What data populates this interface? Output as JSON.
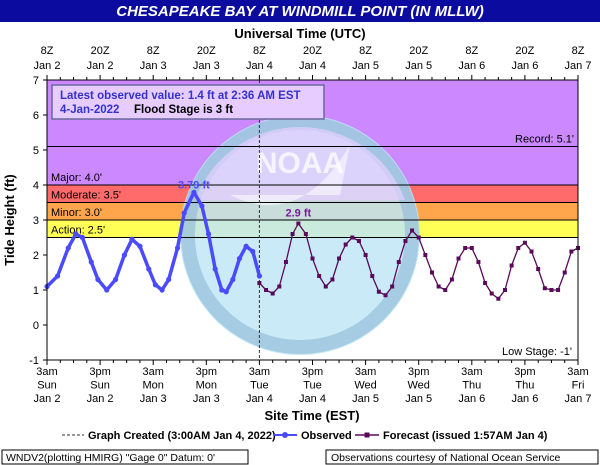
{
  "title": "CHESAPEAKE BAY AT WINDMILL POINT (IN MLLW)",
  "top_axis_label": "Universal Time (UTC)",
  "bottom_axis_label": "Site Time (EST)",
  "y_axis_label": "Tide Height (ft)",
  "info_box": {
    "line1": "Latest observed value: 1.4 ft at 2:36 AM EST",
    "line2_date": "4-Jan-2022",
    "line2_flood": "Flood Stage is 3 ft"
  },
  "legend": {
    "graph_created": "Graph Created (3:00AM Jan 4, 2022)",
    "observed": "Observed",
    "forecast": "Forecast (issued 1:57AM Jan 4)"
  },
  "footer": {
    "left": "WNDV2(plotting HMIRG) \"Gage 0\" Datum: 0'",
    "right": "Observations courtesy of National Ocean Service"
  },
  "watermark": "NOAA",
  "colors": {
    "title_bg": "#0b0ba0",
    "major": "#cc88ff",
    "moderate": "#ff6a6a",
    "minor": "#ffa64d",
    "action": "#ffff55",
    "observed": "#4a4aff",
    "forecast": "#5a0a5a",
    "peak_label": "#7a1a9a",
    "obs_label": "#4a4aff",
    "info_text": "#3333cc"
  },
  "chart_data": {
    "type": "line",
    "x_unit": "hours since Jan 2 3am EST",
    "xlim": [
      0,
      120
    ],
    "ylim": [
      -1,
      7
    ],
    "y_ticks": [
      -1,
      0,
      1,
      2,
      3,
      4,
      5,
      6,
      7
    ],
    "top_ticks": [
      {
        "x": 0,
        "l1": "8Z",
        "l2": "Jan 2"
      },
      {
        "x": 12,
        "l1": "20Z",
        "l2": "Jan 2"
      },
      {
        "x": 24,
        "l1": "8Z",
        "l2": "Jan 3"
      },
      {
        "x": 36,
        "l1": "20Z",
        "l2": "Jan 3"
      },
      {
        "x": 48,
        "l1": "8Z",
        "l2": "Jan 4"
      },
      {
        "x": 60,
        "l1": "20Z",
        "l2": "Jan 4"
      },
      {
        "x": 72,
        "l1": "8Z",
        "l2": "Jan 5"
      },
      {
        "x": 84,
        "l1": "20Z",
        "l2": "Jan 5"
      },
      {
        "x": 96,
        "l1": "8Z",
        "l2": "Jan 6"
      },
      {
        "x": 108,
        "l1": "20Z",
        "l2": "Jan 6"
      },
      {
        "x": 120,
        "l1": "8Z",
        "l2": "Jan 7"
      }
    ],
    "bottom_ticks": [
      {
        "x": 0,
        "l1": "3am",
        "l2": "Sun",
        "l3": "Jan 2"
      },
      {
        "x": 12,
        "l1": "3pm",
        "l2": "Sun",
        "l3": "Jan 2"
      },
      {
        "x": 24,
        "l1": "3am",
        "l2": "Mon",
        "l3": "Jan 3"
      },
      {
        "x": 36,
        "l1": "3pm",
        "l2": "Mon",
        "l3": "Jan 3"
      },
      {
        "x": 48,
        "l1": "3am",
        "l2": "Tue",
        "l3": "Jan 4"
      },
      {
        "x": 60,
        "l1": "3pm",
        "l2": "Tue",
        "l3": "Jan 4"
      },
      {
        "x": 72,
        "l1": "3am",
        "l2": "Wed",
        "l3": "Jan 5"
      },
      {
        "x": 84,
        "l1": "3pm",
        "l2": "Wed",
        "l3": "Jan 5"
      },
      {
        "x": 96,
        "l1": "3am",
        "l2": "Thu",
        "l3": "Jan 6"
      },
      {
        "x": 108,
        "l1": "3pm",
        "l2": "Thu",
        "l3": "Jan 6"
      },
      {
        "x": 120,
        "l1": "3am",
        "l2": "Fri",
        "l3": "Jan 7"
      }
    ],
    "thresholds": [
      {
        "name": "Record",
        "label": "Record: 5.1'",
        "value": 5.1
      },
      {
        "name": "Major",
        "label": "Major: 4.0'",
        "value": 4.0
      },
      {
        "name": "Moderate",
        "label": "Moderate: 3.5'",
        "value": 3.5
      },
      {
        "name": "Minor",
        "label": "Minor: 3.0'",
        "value": 3.0
      },
      {
        "name": "Action",
        "label": "Action: 2.5'",
        "value": 2.5
      },
      {
        "name": "Low Stage",
        "label": "Low Stage: -1'",
        "value": -1
      }
    ],
    "graph_created_x": 48,
    "observed": {
      "name": "Observed",
      "peak_label": "3.79 ft",
      "peak": {
        "x": 33.2,
        "y": 3.79
      },
      "points": [
        [
          0,
          1.1
        ],
        [
          2.4,
          1.4
        ],
        [
          4.8,
          2.2
        ],
        [
          6.5,
          2.6
        ],
        [
          8,
          2.5
        ],
        [
          10,
          1.8
        ],
        [
          11.5,
          1.3
        ],
        [
          13.5,
          1.0
        ],
        [
          15.5,
          1.3
        ],
        [
          17.5,
          2.0
        ],
        [
          19.2,
          2.45
        ],
        [
          21,
          2.25
        ],
        [
          23,
          1.6
        ],
        [
          24.5,
          1.15
        ],
        [
          26,
          1.0
        ],
        [
          27.5,
          1.3
        ],
        [
          29.5,
          2.2
        ],
        [
          31,
          3.2
        ],
        [
          33.2,
          3.79
        ],
        [
          35,
          3.4
        ],
        [
          36.5,
          2.6
        ],
        [
          38,
          1.6
        ],
        [
          39.5,
          1.0
        ],
        [
          40.5,
          0.95
        ],
        [
          42,
          1.3
        ],
        [
          43.5,
          1.9
        ],
        [
          45,
          2.25
        ],
        [
          46.5,
          2.1
        ],
        [
          48,
          1.4
        ]
      ]
    },
    "forecast": {
      "name": "Forecast",
      "peak_label": "2.9 ft",
      "peak": {
        "x": 56.8,
        "y": 2.9
      },
      "points": [
        [
          48,
          1.2
        ],
        [
          49.5,
          1.0
        ],
        [
          51,
          0.9
        ],
        [
          52.5,
          1.1
        ],
        [
          54,
          1.8
        ],
        [
          55.5,
          2.6
        ],
        [
          56.8,
          2.9
        ],
        [
          58.5,
          2.6
        ],
        [
          60,
          1.9
        ],
        [
          61.5,
          1.4
        ],
        [
          63,
          1.1
        ],
        [
          64.5,
          1.3
        ],
        [
          66,
          1.9
        ],
        [
          67.5,
          2.3
        ],
        [
          69,
          2.5
        ],
        [
          70.5,
          2.4
        ],
        [
          72,
          2.0
        ],
        [
          73.5,
          1.4
        ],
        [
          75,
          0.95
        ],
        [
          76.5,
          0.85
        ],
        [
          78,
          1.1
        ],
        [
          79.5,
          1.8
        ],
        [
          81,
          2.4
        ],
        [
          82.5,
          2.7
        ],
        [
          84,
          2.5
        ],
        [
          85.5,
          2.0
        ],
        [
          87,
          1.5
        ],
        [
          88.5,
          1.1
        ],
        [
          90,
          1.0
        ],
        [
          91.5,
          1.3
        ],
        [
          93,
          1.9
        ],
        [
          94.5,
          2.2
        ],
        [
          96,
          2.2
        ],
        [
          97.5,
          1.8
        ],
        [
          99,
          1.2
        ],
        [
          100.5,
          0.9
        ],
        [
          102,
          0.75
        ],
        [
          103.5,
          1.0
        ],
        [
          105,
          1.7
        ],
        [
          106.5,
          2.2
        ],
        [
          108,
          2.35
        ],
        [
          109.5,
          2.1
        ],
        [
          111,
          1.6
        ],
        [
          112.5,
          1.05
        ],
        [
          114,
          1.0
        ],
        [
          115.5,
          1.0
        ],
        [
          117,
          1.5
        ],
        [
          118.5,
          2.1
        ],
        [
          120,
          2.2
        ]
      ]
    }
  }
}
